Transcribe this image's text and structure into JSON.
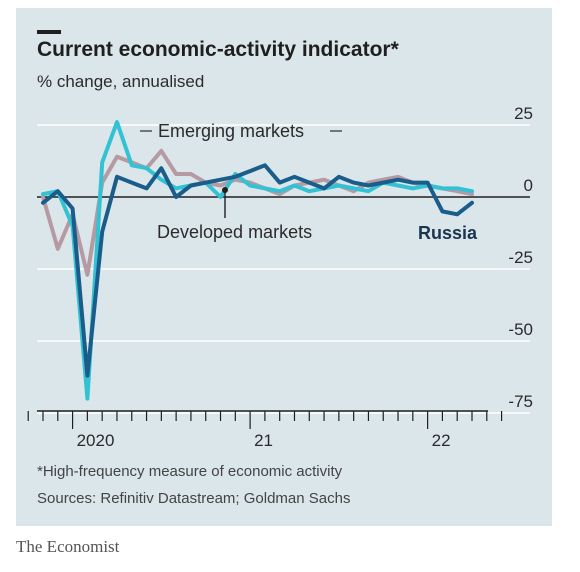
{
  "title": "Current economic-activity indicator*",
  "subtitle": "% change, annualised",
  "footnote": "*High-frequency measure of economic activity",
  "sources": "Sources: Refinitiv Datastream; Goldman Sachs",
  "brand": "The Economist",
  "colors": {
    "background": "#dbe6ea",
    "developed": "#b69aa3",
    "emerging": "#33c1d4",
    "russia": "#1a5d8a"
  },
  "chart_data": {
    "type": "line",
    "x_tick_labels": [
      "2020",
      "21",
      "22"
    ],
    "y_ticks": [
      25,
      0,
      -25,
      -50,
      -75
    ],
    "ylim": [
      -75,
      30
    ],
    "x_unit": "month",
    "x_range": [
      "2019-10",
      "2022-06"
    ],
    "annotations": [
      {
        "text": "Emerging markets",
        "series": "emerging"
      },
      {
        "text": "Developed markets",
        "series": "developed"
      },
      {
        "text": "Russia",
        "series": "russia",
        "bold": true
      }
    ],
    "series": [
      {
        "key": "developed",
        "name": "Developed markets",
        "x": [
          "2019-11",
          "2019-12",
          "2020-01",
          "2020-02",
          "2020-03",
          "2020-04",
          "2020-05",
          "2020-06",
          "2020-07",
          "2020-08",
          "2020-09",
          "2020-10",
          "2020-11",
          "2020-12",
          "2021-01",
          "2021-02",
          "2021-03",
          "2021-04",
          "2021-05",
          "2021-06",
          "2021-07",
          "2021-08",
          "2021-09",
          "2021-10",
          "2021-11",
          "2021-12",
          "2022-01",
          "2022-02",
          "2022-03",
          "2022-04"
        ],
        "values": [
          0,
          -18,
          -6,
          -27,
          5,
          14,
          12,
          10,
          16,
          8,
          8,
          5,
          4,
          6,
          5,
          3,
          1,
          4,
          5,
          6,
          4,
          2,
          5,
          6,
          7,
          5,
          4,
          3,
          2,
          1
        ]
      },
      {
        "key": "emerging",
        "name": "Emerging markets",
        "x": [
          "2019-11",
          "2019-12",
          "2020-01",
          "2020-02",
          "2020-03",
          "2020-04",
          "2020-05",
          "2020-06",
          "2020-07",
          "2020-08",
          "2020-09",
          "2020-10",
          "2020-11",
          "2020-12",
          "2021-01",
          "2021-02",
          "2021-03",
          "2021-04",
          "2021-05",
          "2021-06",
          "2021-07",
          "2021-08",
          "2021-09",
          "2021-10",
          "2021-11",
          "2021-12",
          "2022-01",
          "2022-02",
          "2022-03",
          "2022-04"
        ],
        "values": [
          1,
          2,
          -10,
          -70,
          12,
          26,
          11,
          10,
          6,
          3,
          4,
          5,
          0,
          8,
          4,
          3,
          2,
          4,
          2,
          3,
          4,
          3,
          2,
          5,
          4,
          3,
          4,
          3,
          3,
          2
        ]
      },
      {
        "key": "russia",
        "name": "Russia",
        "x": [
          "2019-11",
          "2019-12",
          "2020-01",
          "2020-02",
          "2020-03",
          "2020-04",
          "2020-05",
          "2020-06",
          "2020-07",
          "2020-08",
          "2020-09",
          "2020-10",
          "2020-11",
          "2020-12",
          "2021-01",
          "2021-02",
          "2021-03",
          "2021-04",
          "2021-05",
          "2021-06",
          "2021-07",
          "2021-08",
          "2021-09",
          "2021-10",
          "2021-11",
          "2021-12",
          "2022-01",
          "2022-02",
          "2022-03",
          "2022-04"
        ],
        "values": [
          -2,
          2,
          -4,
          -62,
          -12,
          7,
          5,
          3,
          10,
          0,
          4,
          5,
          6,
          7,
          9,
          11,
          5,
          7,
          5,
          3,
          7,
          5,
          4,
          5,
          6,
          5,
          5,
          -5,
          -6,
          -2
        ]
      }
    ]
  }
}
